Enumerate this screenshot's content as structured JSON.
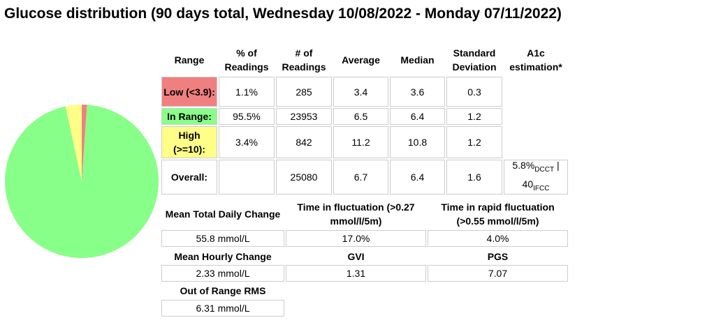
{
  "title": "Glucose distribution (90 days total, Wednesday 10/08/2022 - Monday 07/11/2022)",
  "chart_data": {
    "type": "pie",
    "values": [
      1.1,
      95.5,
      3.4
    ],
    "colors": [
      "#f08080",
      "#88ff88",
      "#ffff88"
    ]
  },
  "range_table": {
    "header": [
      "Range",
      "% of Readings",
      "# of Readings",
      "Average",
      "Median",
      "Standard Deviation",
      "A1c estimation*"
    ],
    "rows": [
      {
        "range": "Low (<3.9):",
        "percent": "1.1%",
        "count": "285",
        "average": "3.4",
        "median": "3.6",
        "sd": "0.3"
      },
      {
        "range": "In Range:",
        "percent": "95.5%",
        "count": "23953",
        "average": "6.5",
        "median": "6.4",
        "sd": "1.2"
      },
      {
        "range": "High (>=10):",
        "percent": "3.4%",
        "count": "842",
        "average": "11.2",
        "median": "10.8",
        "sd": "1.2"
      },
      {
        "range": "Overall:",
        "count": "25080",
        "average": "6.7",
        "median": "6.4",
        "sd": "1.6"
      }
    ],
    "a1c": {
      "dcct": "5.8%",
      "dcct_sub": "DCCT",
      "separator": "|",
      "ifcc": "40",
      "ifcc_sub": "IFCC"
    }
  },
  "stats": [
    {
      "label": "Mean Total Daily Change",
      "value": "55.8 mmol/L"
    },
    {
      "label": "Time in fluctuation (>0.27 mmol/l/5m)",
      "value": "17.0%"
    },
    {
      "label": "Time in rapid fluctuation (>0.55 mmol/l/5m)",
      "value": "4.0%"
    },
    {
      "label": "Mean Hourly Change",
      "value": "2.33 mmol/L"
    },
    {
      "label": "GVI",
      "value": "1.31"
    },
    {
      "label": "PGS",
      "value": "7.07"
    },
    {
      "label": "Out of Range RMS",
      "value": "6.31 mmol/L"
    }
  ]
}
